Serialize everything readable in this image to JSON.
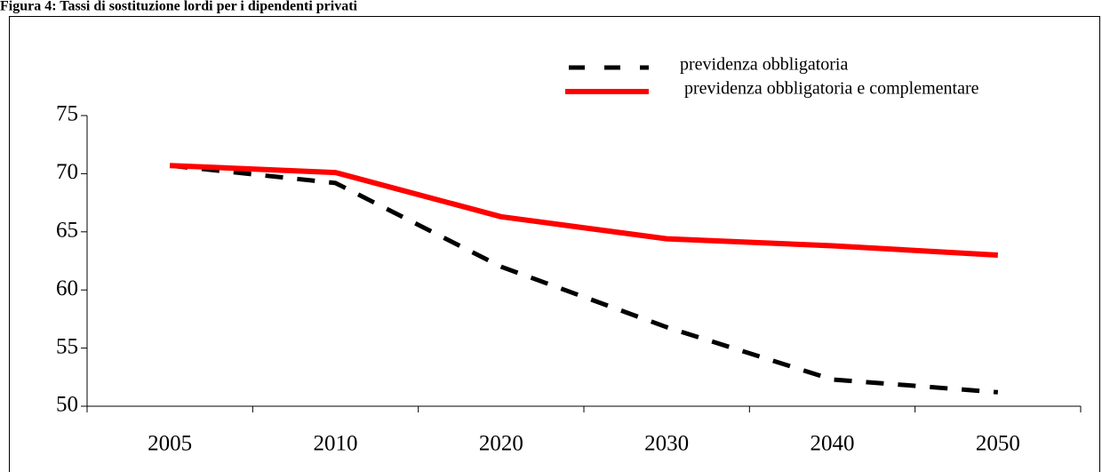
{
  "chart_data": {
    "type": "line",
    "title": "Figura 4: Tassi di sostituzione lordi per i dipendenti privati",
    "categories": [
      "2005",
      "2010",
      "2020",
      "2030",
      "2040",
      "2050"
    ],
    "series": [
      {
        "name": "previdenza obbligatoria",
        "color": "#000000",
        "dash": true,
        "values": [
          70.7,
          69.2,
          62.0,
          56.8,
          52.3,
          51.2
        ]
      },
      {
        "name": "previdenza obbligatoria e complementare",
        "color": "#ff0000",
        "dash": false,
        "values": [
          70.7,
          70.1,
          66.3,
          64.4,
          63.8,
          63.0
        ]
      }
    ],
    "ylim": [
      50,
      75
    ],
    "yticks": [
      50,
      55,
      60,
      65,
      70,
      75
    ],
    "grid": false
  }
}
